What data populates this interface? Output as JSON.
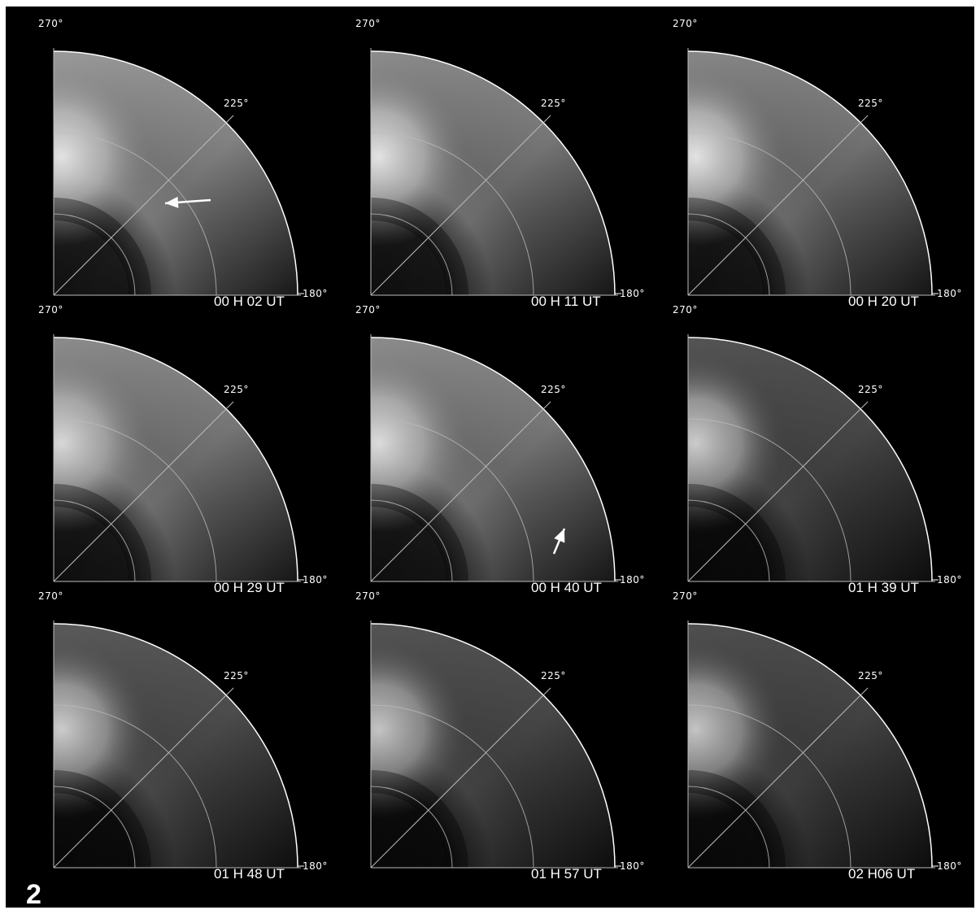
{
  "figure_number": "2",
  "panels": [
    {
      "time": "00 H 02 UT",
      "label_270": "270°",
      "label_225": "225°",
      "label_180": "180°",
      "arrow": "left",
      "upper_bright": 0.95,
      "mid_bright": 0.55,
      "lower_bright": 0.12
    },
    {
      "time": "00 H 11 UT",
      "label_270": "270°",
      "label_225": "225°",
      "label_180": "180°",
      "arrow": "none",
      "upper_bright": 0.95,
      "mid_bright": 0.5,
      "lower_bright": 0.1
    },
    {
      "time": "00 H 20 UT",
      "label_270": "270°",
      "label_225": "225°",
      "label_180": "180°",
      "arrow": "none",
      "upper_bright": 0.95,
      "mid_bright": 0.48,
      "lower_bright": 0.1
    },
    {
      "time": "00 H 29 UT",
      "label_270": "270°",
      "label_225": "225°",
      "label_180": "180°",
      "arrow": "none",
      "upper_bright": 0.9,
      "mid_bright": 0.5,
      "lower_bright": 0.1
    },
    {
      "time": "00 H 40 UT",
      "label_270": "270°",
      "label_225": "225°",
      "label_180": "180°",
      "arrow": "up",
      "upper_bright": 0.92,
      "mid_bright": 0.5,
      "lower_bright": 0.1
    },
    {
      "time": "01 H 39 UT",
      "label_270": "270°",
      "label_225": "225°",
      "label_180": "180°",
      "arrow": "none",
      "upper_bright": 0.85,
      "mid_bright": 0.3,
      "lower_bright": 0.05
    },
    {
      "time": "01 H 48 UT",
      "label_270": "270°",
      "label_225": "225°",
      "label_180": "180°",
      "arrow": "none",
      "upper_bright": 0.85,
      "mid_bright": 0.32,
      "lower_bright": 0.05
    },
    {
      "time": "01 H 57 UT",
      "label_270": "270°",
      "label_225": "225°",
      "label_180": "180°",
      "arrow": "none",
      "upper_bright": 0.82,
      "mid_bright": 0.3,
      "lower_bright": 0.05
    },
    {
      "time": "02 H06 UT",
      "label_270": "270°",
      "label_225": "225°",
      "label_180": "180°",
      "arrow": "none",
      "upper_bright": 0.82,
      "mid_bright": 0.28,
      "lower_bright": 0.05
    }
  ]
}
